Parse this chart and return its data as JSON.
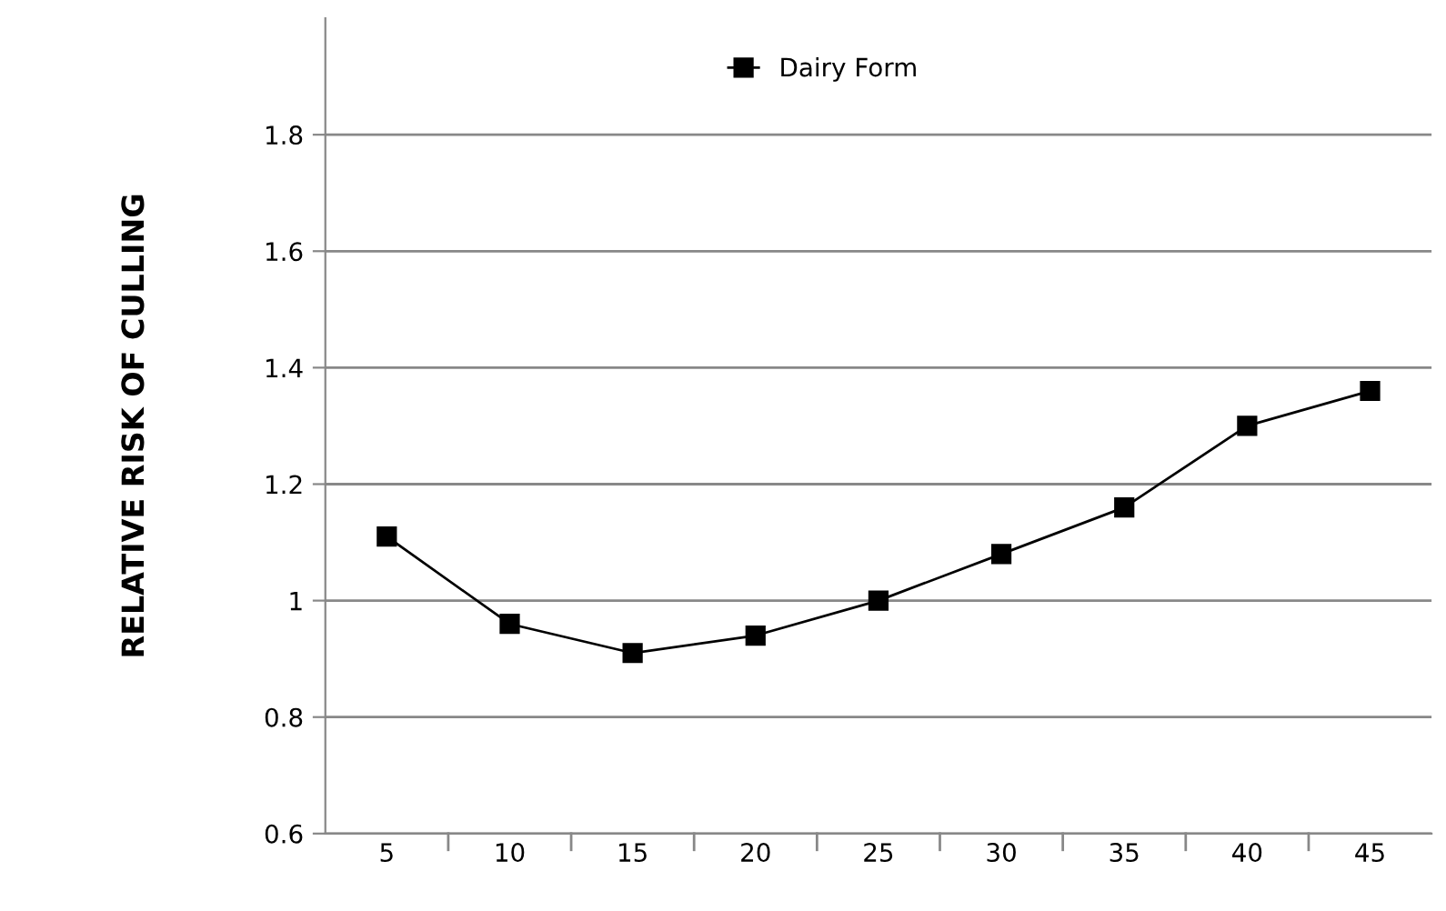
{
  "chart_data": {
    "type": "line",
    "ylabel": "RELATIVE RISK OF CULLING",
    "categories": [
      "5",
      "10",
      "15",
      "20",
      "25",
      "30",
      "35",
      "40",
      "45"
    ],
    "series": [
      {
        "name": "Dairy Form",
        "color": "#000000",
        "values": [
          1.11,
          0.96,
          0.91,
          0.94,
          1.0,
          1.08,
          1.16,
          1.3,
          1.36
        ]
      }
    ],
    "ylim": [
      0.6,
      2.0
    ],
    "yticks": [
      0.6,
      0.8,
      1,
      1.2,
      1.4,
      1.6,
      1.8
    ],
    "grid": "y",
    "legend": "top",
    "marker": "square",
    "line_style": "solid"
  }
}
